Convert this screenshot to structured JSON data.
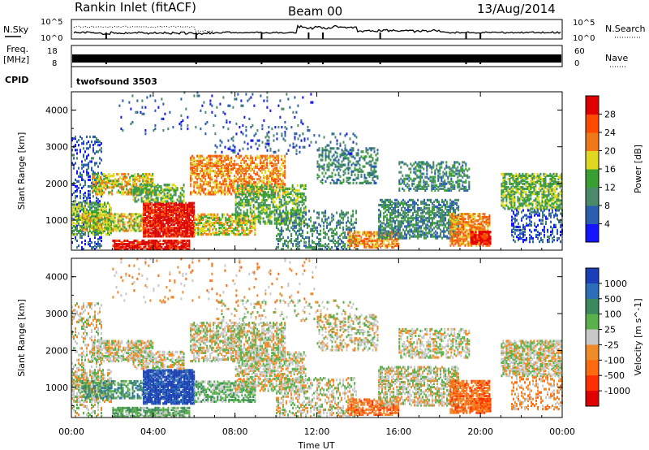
{
  "header": {
    "station": "Rankin Inlet (fitACF)",
    "beam": "Beam 00",
    "date": "13/Aug/2014"
  },
  "noise_panel": {
    "left_label": "N.Sky",
    "right_label": "N.Search",
    "left_ticks": [
      "10^5",
      "10^0"
    ],
    "right_ticks": [
      "10^5",
      "10^0"
    ]
  },
  "freq_panel": {
    "left_label_1": "Freq.",
    "left_label_2": "[MHz]",
    "right_label": "Nave",
    "left_ticks": [
      "18",
      "8"
    ],
    "right_ticks": [
      "60",
      "0"
    ]
  },
  "cpid": {
    "label": "CPID",
    "value": "twofsound 3503"
  },
  "chart_data": [
    {
      "type": "heatmap",
      "name": "Power",
      "ylabel": "Slant Range [km]",
      "xlabel": "Time UT",
      "ylim": [
        180,
        4500
      ],
      "yticks": [
        1000,
        2000,
        3000,
        4000
      ],
      "xticks_hours": [
        0,
        4,
        8,
        12,
        16,
        20,
        24
      ],
      "x_tick_labels": [
        "00:00",
        "04:00",
        "08:00",
        "12:00",
        "16:00",
        "20:00",
        "00:00"
      ],
      "colorbar": {
        "label": "Power [dB]",
        "tick_labels": [
          "4",
          "8",
          "12",
          "16",
          "20",
          "24",
          "28"
        ],
        "colors": [
          "#1414ff",
          "#2a5fb0",
          "#4a8a6a",
          "#37a030",
          "#e0d820",
          "#f07818",
          "#ff4a00",
          "#e00000"
        ],
        "range": [
          0,
          32
        ]
      }
    },
    {
      "type": "heatmap",
      "name": "Velocity",
      "ylabel": "Slant Range [km]",
      "xlabel": "Time UT",
      "ylim": [
        180,
        4500
      ],
      "yticks": [
        1000,
        2000,
        3000,
        4000
      ],
      "xticks_hours": [
        0,
        4,
        8,
        12,
        16,
        20,
        24
      ],
      "x_tick_labels": [
        "00:00",
        "04:00",
        "08:00",
        "12:00",
        "16:00",
        "20:00",
        "00:00"
      ],
      "colorbar": {
        "label": "Velocity [m s^-1]",
        "tick_labels": [
          "1000",
          "500",
          "100",
          "25",
          "-25",
          "-100",
          "-500",
          "-1000"
        ],
        "colors": [
          "#1a3fb8",
          "#2c6fb8",
          "#3a8a5e",
          "#5ab04a",
          "#c8c8c8",
          "#f08c28",
          "#ff6a10",
          "#ff3000",
          "#e00000"
        ]
      }
    }
  ]
}
